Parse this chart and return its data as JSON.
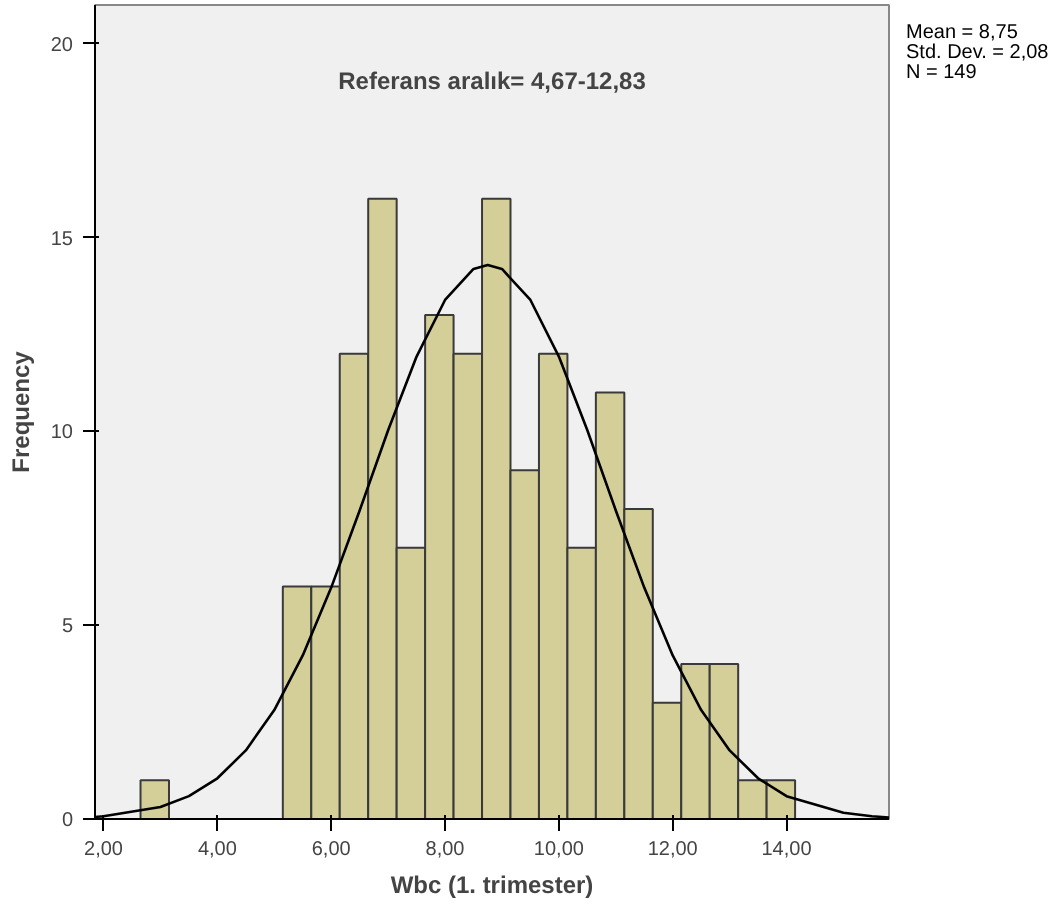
{
  "chart_data": {
    "type": "histogram",
    "xlabel": "Wbc (1. trimester)",
    "ylabel": "Frequency",
    "annotations": [
      "Referans aralık= 4,67-12,83",
      "Mean = 8,75",
      "Std. Dev. = 2,08",
      "N = 149"
    ],
    "xlim": [
      1.85,
      15.8
    ],
    "ylim": [
      0,
      21
    ],
    "xticks": [
      {
        "value": 2,
        "label": "2,00"
      },
      {
        "value": 4,
        "label": "4,00"
      },
      {
        "value": 6,
        "label": "6,00"
      },
      {
        "value": 8,
        "label": "8,00"
      },
      {
        "value": 10,
        "label": "10,00"
      },
      {
        "value": 12,
        "label": "12,00"
      },
      {
        "value": 14,
        "label": "14,00"
      }
    ],
    "yticks": [
      0,
      5,
      10,
      15,
      20
    ],
    "grid": false,
    "series": [
      {
        "color": "#d4cf98",
        "bins": [
          2.65,
          3.15,
          3.65,
          4.15,
          4.65,
          5.15,
          5.65,
          6.15,
          6.65,
          7.15,
          7.65,
          8.15,
          8.65,
          9.15,
          9.65,
          10.15,
          10.65,
          11.15,
          11.65,
          12.15,
          12.65,
          13.15,
          13.65,
          14.15
        ],
        "values": [
          1,
          0,
          0,
          0,
          0,
          6,
          6,
          12,
          16,
          7,
          13,
          12,
          16,
          9,
          12,
          7,
          11,
          8,
          3,
          4,
          4,
          1,
          1
        ]
      },
      {
        "type": "line",
        "color": "#000000",
        "x": [
          1.85,
          2,
          3,
          3.5,
          4,
          4.5,
          5,
          5.5,
          6,
          6.5,
          7,
          7.5,
          8,
          8.5,
          8.75,
          9,
          9.5,
          10,
          10.5,
          11,
          11.5,
          12,
          12.5,
          13,
          13.5,
          14,
          15,
          15.5,
          15.8
        ],
        "values": [
          0.05,
          0.07,
          0.31,
          0.59,
          1.05,
          1.77,
          2.81,
          4.22,
          5.97,
          7.96,
          10.03,
          11.93,
          13.39,
          14.19,
          14.29,
          14.19,
          13.39,
          11.93,
          10.03,
          7.96,
          5.97,
          4.22,
          2.81,
          1.77,
          1.05,
          0.59,
          0.16,
          0.07,
          0.04
        ]
      }
    ]
  }
}
